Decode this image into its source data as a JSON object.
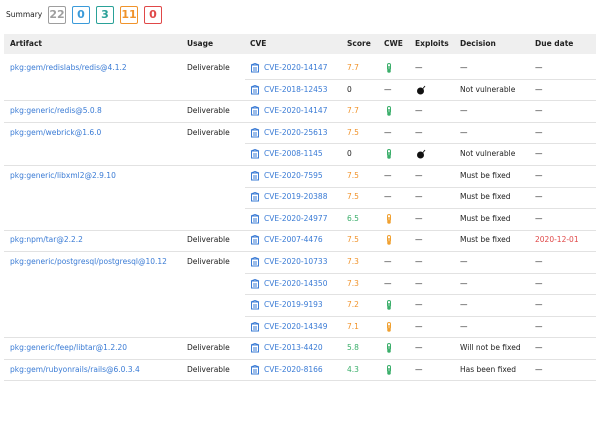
{
  "summary": {
    "label": "Summary",
    "counts": [
      22,
      0,
      3,
      11,
      0
    ],
    "colors": [
      "#9e9e9e",
      "#3a9ad9",
      "#2aa198",
      "#f0932b",
      "#e04848"
    ]
  },
  "table": {
    "columns": [
      "Artifact",
      "Usage",
      "CVE",
      "Score",
      "CWE",
      "Exploits",
      "Decision",
      "Due date"
    ],
    "rows": [
      {
        "artifact": "pkg:gem/redislabs/redis@4.1.2",
        "usage": "Deliverable",
        "cve": "CVE-2020-14147",
        "score": 7.7,
        "cwe": "green",
        "exploits": "—",
        "decision": "—",
        "due_date": "—"
      },
      {
        "artifact": null,
        "usage": null,
        "cve": "CVE-2018-12453",
        "score": 0,
        "cwe": "—",
        "exploits": "bomb",
        "decision": "Not vulnerable",
        "due_date": "—"
      },
      {
        "artifact": "pkg:generic/redis@5.0.8",
        "usage": "Deliverable",
        "cve": "CVE-2020-14147",
        "score": 7.7,
        "cwe": "green",
        "exploits": "—",
        "decision": "—",
        "due_date": "—"
      },
      {
        "artifact": "pkg:gem/webrick@1.6.0",
        "usage": "Deliverable",
        "cve": "CVE-2020-25613",
        "score": 7.5,
        "cwe": "—",
        "exploits": "—",
        "decision": "—",
        "due_date": "—"
      },
      {
        "artifact": null,
        "usage": null,
        "cve": "CVE-2008-1145",
        "score": 0,
        "cwe": "green",
        "exploits": "bomb",
        "decision": "Not vulnerable",
        "due_date": "—"
      },
      {
        "artifact": "pkg:generic/libxml2@2.9.10",
        "usage": null,
        "cve": "CVE-2020-7595",
        "score": 7.5,
        "cwe": "—",
        "exploits": "—",
        "decision": "Must be fixed",
        "due_date": "—"
      },
      {
        "artifact": null,
        "usage": null,
        "cve": "CVE-2019-20388",
        "score": 7.5,
        "cwe": "—",
        "exploits": "—",
        "decision": "Must be fixed",
        "due_date": "—"
      },
      {
        "artifact": null,
        "usage": null,
        "cve": "CVE-2020-24977",
        "score": 6.5,
        "cwe": "orange",
        "exploits": "—",
        "decision": "Must be fixed",
        "due_date": "—"
      },
      {
        "artifact": "pkg:npm/tar@2.2.2",
        "usage": "Deliverable",
        "cve": "CVE-2007-4476",
        "score": 7.5,
        "cwe": "orange",
        "exploits": "—",
        "decision": "Must be fixed",
        "due_date": "2020-12-01"
      },
      {
        "artifact": "pkg:generic/postgresql/postgresql@10.12",
        "usage": "Deliverable",
        "cve": "CVE-2020-10733",
        "score": 7.3,
        "cwe": "—",
        "exploits": "—",
        "decision": "—",
        "due_date": "—"
      },
      {
        "artifact": null,
        "usage": null,
        "cve": "CVE-2020-14350",
        "score": 7.3,
        "cwe": "—",
        "exploits": "—",
        "decision": "—",
        "due_date": "—"
      },
      {
        "artifact": null,
        "usage": null,
        "cve": "CVE-2019-9193",
        "score": 7.2,
        "cwe": "green",
        "exploits": "—",
        "decision": "—",
        "due_date": "—"
      },
      {
        "artifact": null,
        "usage": null,
        "cve": "CVE-2020-14349",
        "score": 7.1,
        "cwe": "orange",
        "exploits": "—",
        "decision": "—",
        "due_date": "—"
      },
      {
        "artifact": "pkg:generic/feep/libtar@1.2.20",
        "usage": "Deliverable",
        "cve": "CVE-2013-4420",
        "score": 5.8,
        "cwe": "green",
        "exploits": "—",
        "decision": "Will not be fixed",
        "due_date": "—"
      },
      {
        "artifact": "pkg:gem/rubyonrails/rails@6.0.3.4",
        "usage": "Deliverable",
        "cve": "CVE-2020-8166",
        "score": 4.3,
        "cwe": "green",
        "exploits": "—",
        "decision": "Has been fixed",
        "due_date": "—"
      }
    ]
  }
}
